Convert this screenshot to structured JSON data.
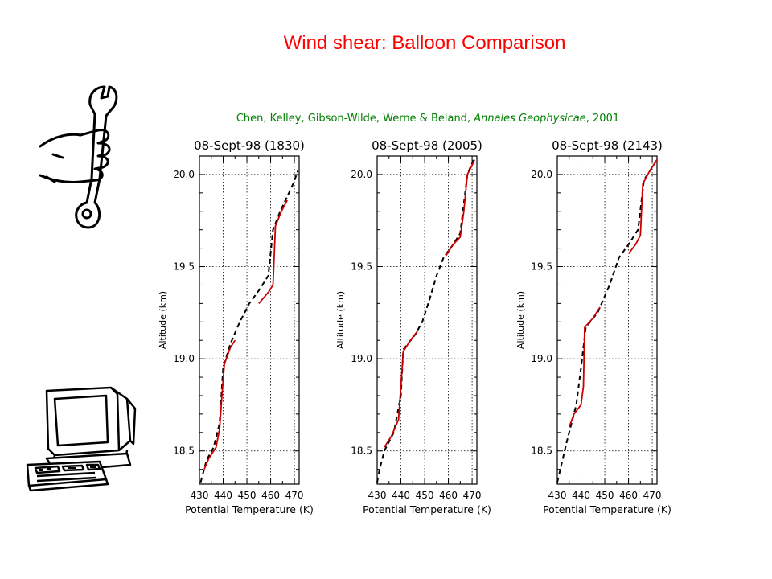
{
  "slide": {
    "title": "Wind shear: Balloon Comparison",
    "citation": {
      "authors": "Chen, Kelley, Gibson-Wilde, Werne & Beland, ",
      "journal": "Annales Geophysicae",
      "year": ", 2001"
    }
  },
  "icons": {
    "wrench": "wrench-in-hand-icon",
    "computer": "computer-terminal-icon"
  },
  "colors": {
    "title": "#ff0000",
    "citation": "#008000",
    "measured": "#cc0000",
    "model": "#000000"
  },
  "chart_data": [
    {
      "type": "line",
      "title": "08-Sept-98 (1830)",
      "xlabel": "Potential Temperature (K)",
      "ylabel": "Altitude (km)",
      "xlim": [
        430,
        472
      ],
      "ylim": [
        18.32,
        20.1
      ],
      "xticks": [
        430,
        440,
        450,
        460,
        470
      ],
      "yticks": [
        18.5,
        19.0,
        19.5,
        20.0
      ],
      "grid": true,
      "series": [
        {
          "style": "dashed",
          "color": "#000000",
          "points": [
            [
              430.5,
              18.33
            ],
            [
              433,
              18.45
            ],
            [
              436,
              18.52
            ],
            [
              438.5,
              18.65
            ],
            [
              440,
              18.95
            ],
            [
              443,
              19.08
            ],
            [
              447,
              19.2
            ],
            [
              451,
              19.3
            ],
            [
              455,
              19.37
            ],
            [
              459,
              19.45
            ],
            [
              461,
              19.7
            ],
            [
              464,
              19.8
            ],
            [
              467,
              19.88
            ],
            [
              469.5,
              19.95
            ],
            [
              471.5,
              20.02
            ]
          ]
        },
        {
          "style": "solid",
          "color": "#cc0000",
          "points": [
            [
              432,
              18.4
            ],
            [
              434,
              18.46
            ],
            [
              437,
              18.52
            ],
            [
              438.5,
              18.62
            ],
            [
              439.5,
              18.8
            ],
            [
              440.5,
              18.97
            ],
            [
              443,
              19.06
            ],
            [
              445,
              19.1
            ]
          ]
        },
        {
          "style": "solid",
          "color": "#cc0000",
          "points": [
            [
              455,
              19.3
            ],
            [
              459,
              19.36
            ],
            [
              461,
              19.4
            ],
            [
              462,
              19.72
            ],
            [
              464.5,
              19.8
            ],
            [
              467,
              19.86
            ]
          ]
        }
      ]
    },
    {
      "type": "line",
      "title": "08-Sept-98 (2005)",
      "xlabel": "Potential Temperature (K)",
      "ylabel": "Altitude (km)",
      "xlim": [
        430,
        472
      ],
      "ylim": [
        18.32,
        20.1
      ],
      "xticks": [
        430,
        440,
        450,
        460,
        470
      ],
      "yticks": [
        18.5,
        19.0,
        19.5,
        20.0
      ],
      "grid": true,
      "series": [
        {
          "style": "dashed",
          "color": "#000000",
          "points": [
            [
              430,
              18.33
            ],
            [
              431,
              18.4
            ],
            [
              433,
              18.5
            ],
            [
              437,
              18.6
            ],
            [
              440,
              18.8
            ],
            [
              441,
              19.05
            ],
            [
              446,
              19.13
            ],
            [
              449,
              19.2
            ],
            [
              452,
              19.32
            ],
            [
              455,
              19.45
            ],
            [
              458,
              19.55
            ],
            [
              462,
              19.62
            ],
            [
              465,
              19.68
            ],
            [
              468,
              20.0
            ],
            [
              471,
              20.09
            ]
          ]
        },
        {
          "style": "solid",
          "color": "#cc0000",
          "points": [
            [
              433,
              18.52
            ],
            [
              436,
              18.58
            ],
            [
              439,
              18.67
            ],
            [
              440,
              18.85
            ],
            [
              441,
              19.04
            ],
            [
              444,
              19.1
            ],
            [
              447,
              19.15
            ]
          ]
        },
        {
          "style": "solid",
          "color": "#cc0000",
          "points": [
            [
              459,
              19.56
            ],
            [
              462,
              19.62
            ],
            [
              465,
              19.66
            ],
            [
              466.5,
              19.8
            ],
            [
              468,
              20.0
            ],
            [
              470,
              20.05
            ],
            [
              471,
              20.08
            ]
          ]
        }
      ]
    },
    {
      "type": "line",
      "title": "08-Sept-98 (2143)",
      "xlabel": "Potential Temperature (K)",
      "ylabel": "Altitude (km)",
      "xlim": [
        430,
        472
      ],
      "ylim": [
        18.32,
        20.1
      ],
      "xticks": [
        430,
        440,
        450,
        460,
        470
      ],
      "yticks": [
        18.5,
        19.0,
        19.5,
        20.0
      ],
      "grid": true,
      "series": [
        {
          "style": "dashed",
          "color": "#000000",
          "points": [
            [
              430,
              18.33
            ],
            [
              434,
              18.55
            ],
            [
              438,
              18.75
            ],
            [
              440,
              18.95
            ],
            [
              442,
              19.17
            ],
            [
              447,
              19.25
            ],
            [
              452,
              19.4
            ],
            [
              456,
              19.55
            ],
            [
              460,
              19.62
            ],
            [
              464,
              19.7
            ],
            [
              466.5,
              19.97
            ],
            [
              470,
              20.04
            ],
            [
              472,
              20.08
            ]
          ]
        },
        {
          "style": "solid",
          "color": "#cc0000",
          "points": [
            [
              435,
              18.63
            ],
            [
              437,
              18.7
            ],
            [
              440,
              18.75
            ],
            [
              441,
              18.85
            ],
            [
              441.5,
              19.17
            ],
            [
              445,
              19.22
            ],
            [
              448,
              19.28
            ]
          ]
        },
        {
          "style": "solid",
          "color": "#cc0000",
          "points": [
            [
              460,
              19.57
            ],
            [
              463,
              19.62
            ],
            [
              465,
              19.67
            ],
            [
              466,
              19.95
            ],
            [
              469,
              20.02
            ],
            [
              472,
              20.08
            ]
          ]
        }
      ]
    }
  ]
}
